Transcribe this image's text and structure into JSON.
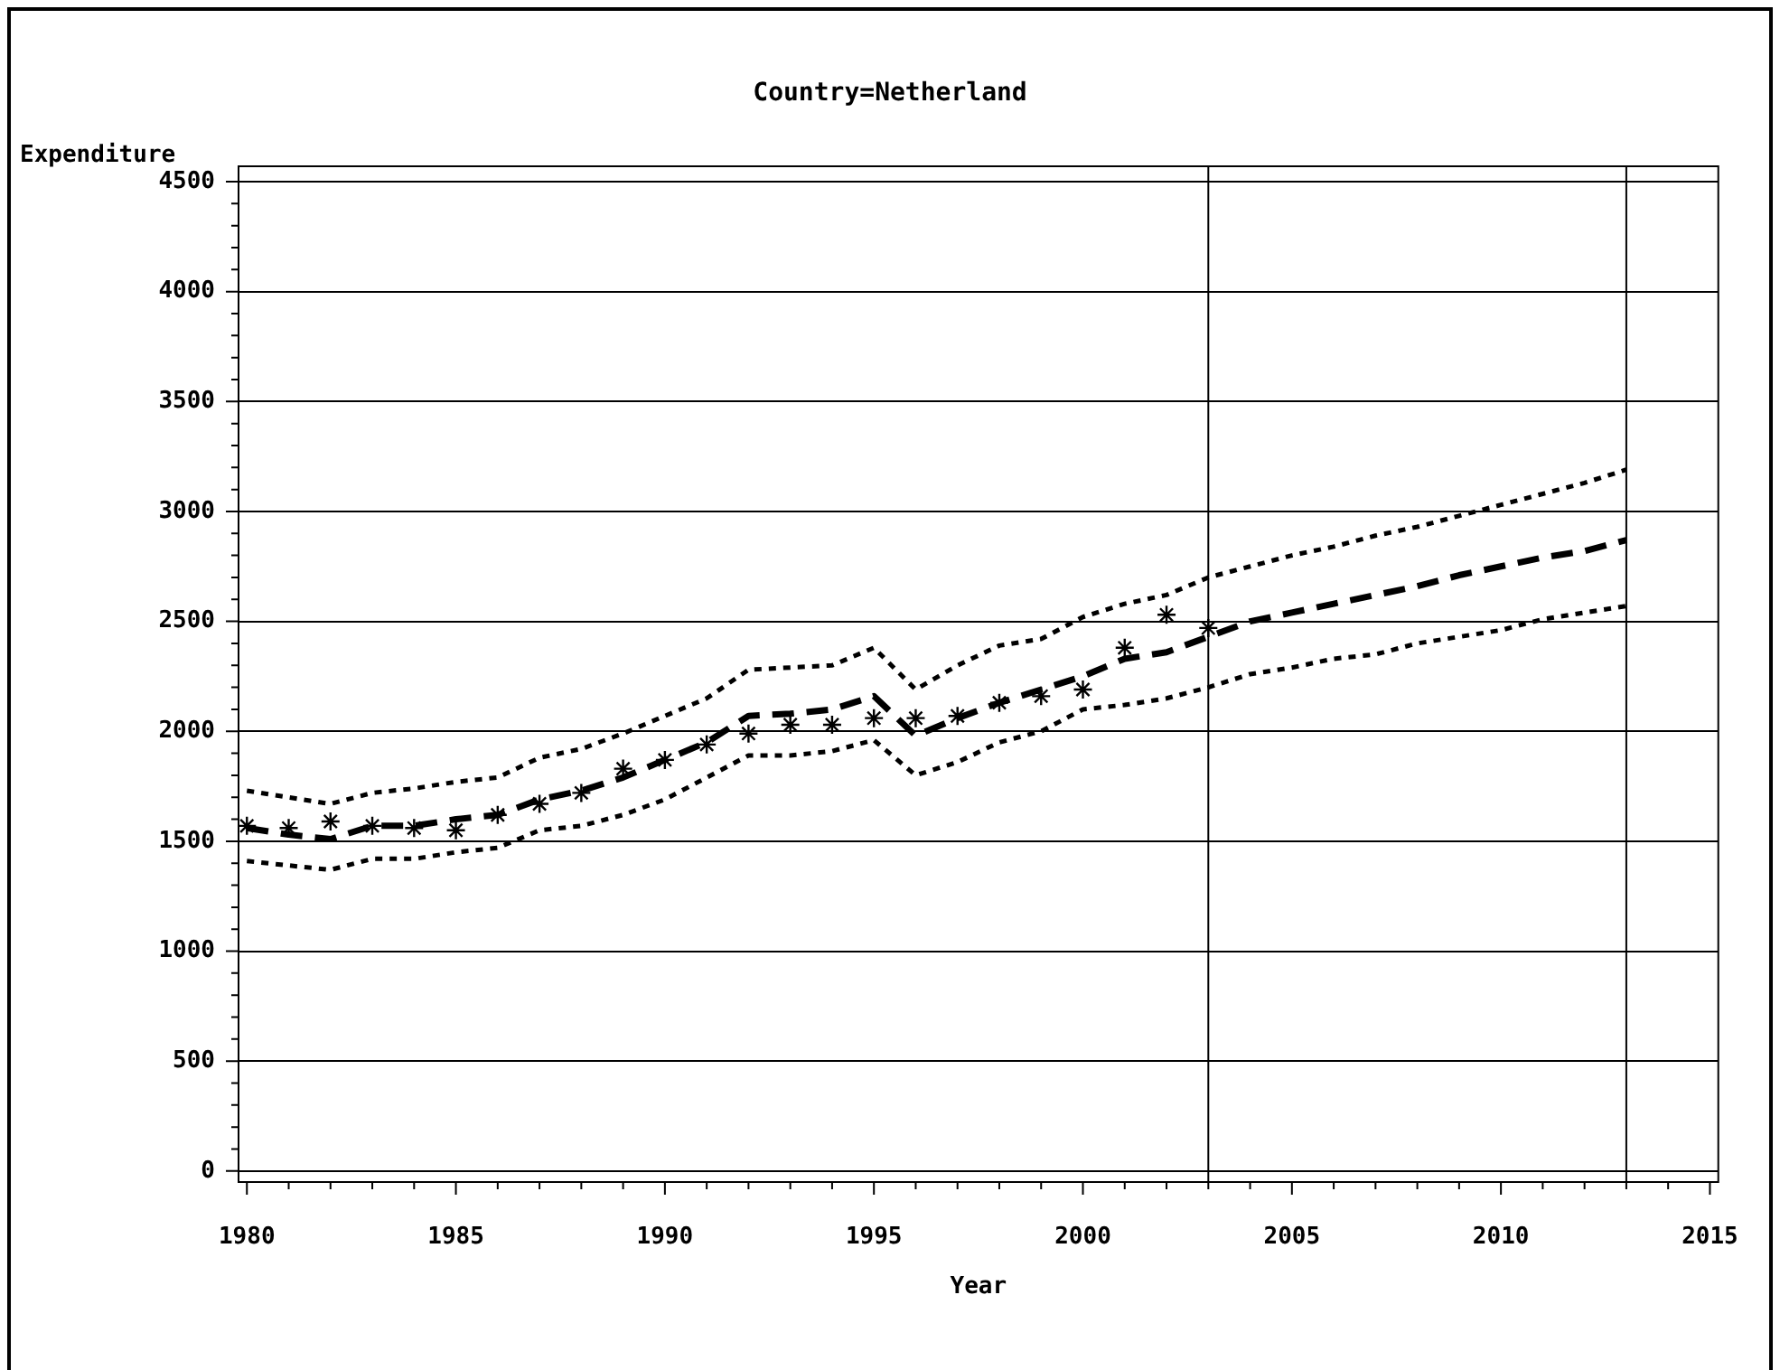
{
  "chart_data": {
    "type": "line",
    "title": "Country=Netherland",
    "xlabel": "Year",
    "ylabel": "Expenditure",
    "x": [
      1980,
      1981,
      1982,
      1983,
      1984,
      1985,
      1986,
      1987,
      1988,
      1989,
      1990,
      1991,
      1992,
      1993,
      1994,
      1995,
      1996,
      1997,
      1998,
      1999,
      2000,
      2001,
      2002,
      2003,
      2004,
      2005,
      2006,
      2007,
      2008,
      2009,
      2010,
      2011,
      2012,
      2013
    ],
    "series": [
      {
        "type": "scatter",
        "color": "#000000",
        "marker": "cross",
        "x": [
          1980,
          1981,
          1982,
          1983,
          1984,
          1985,
          1986,
          1987,
          1988,
          1989,
          1990,
          1991,
          1992,
          1993,
          1994,
          1995,
          1996,
          1997,
          1998,
          1999,
          2000,
          2001,
          2002,
          2003
        ],
        "values": [
          1570,
          1560,
          1590,
          1570,
          1560,
          1550,
          1620,
          1670,
          1720,
          1830,
          1870,
          1940,
          1990,
          2030,
          2030,
          2060,
          2060,
          2070,
          2130,
          2160,
          2190,
          2380,
          2530,
          2470
        ]
      },
      {
        "type": "line",
        "color": "#000000",
        "line_style": "dashed",
        "marker": "none",
        "values": [
          1560,
          1530,
          1510,
          1570,
          1570,
          1600,
          1620,
          1690,
          1730,
          1790,
          1870,
          1950,
          2070,
          2080,
          2100,
          2160,
          1980,
          2060,
          2130,
          2190,
          2250,
          2330,
          2360,
          2430,
          2500,
          2540,
          2580,
          2620,
          2660,
          2710,
          2750,
          2790,
          2820,
          2870
        ]
      },
      {
        "type": "line",
        "color": "#000000",
        "line_style": "dotted",
        "marker": "none",
        "values": [
          1730,
          1700,
          1670,
          1720,
          1740,
          1770,
          1790,
          1880,
          1920,
          1990,
          2070,
          2150,
          2280,
          2290,
          2300,
          2380,
          2190,
          2300,
          2390,
          2420,
          2520,
          2580,
          2620,
          2700,
          2750,
          2800,
          2840,
          2890,
          2930,
          2980,
          3030,
          3080,
          3130,
          3190
        ]
      },
      {
        "type": "line",
        "color": "#000000",
        "line_style": "dotted",
        "marker": "none",
        "values": [
          1410,
          1390,
          1370,
          1420,
          1420,
          1450,
          1470,
          1550,
          1570,
          1620,
          1690,
          1790,
          1890,
          1890,
          1910,
          1960,
          1800,
          1860,
          1950,
          2000,
          2100,
          2120,
          2150,
          2200,
          2260,
          2290,
          2330,
          2350,
          2400,
          2430,
          2460,
          2510,
          2540,
          2570
        ]
      }
    ],
    "xlim": [
      1979.8,
      2015.2
    ],
    "xticks": [
      1980,
      {
        "value": 1981,
        "label": null
      },
      {
        "value": 1982,
        "label": null
      },
      {
        "value": 1983,
        "label": null
      },
      {
        "value": 1984,
        "label": null
      },
      1985,
      {
        "value": 1986,
        "label": null
      },
      {
        "value": 1987,
        "label": null
      },
      {
        "value": 1988,
        "label": null
      },
      {
        "value": 1989,
        "label": null
      },
      1990,
      {
        "value": 1991,
        "label": null
      },
      {
        "value": 1992,
        "label": null
      },
      {
        "value": 1993,
        "label": null
      },
      {
        "value": 1994,
        "label": null
      },
      1995,
      {
        "value": 1996,
        "label": null
      },
      {
        "value": 1997,
        "label": null
      },
      {
        "value": 1998,
        "label": null
      },
      {
        "value": 1999,
        "label": null
      },
      2000,
      {
        "value": 2001,
        "label": null
      },
      {
        "value": 2002,
        "label": null
      },
      {
        "value": 2003,
        "label": null
      },
      {
        "value": 2004,
        "label": null
      },
      2005,
      {
        "value": 2006,
        "label": null
      },
      {
        "value": 2007,
        "label": null
      },
      {
        "value": 2008,
        "label": null
      },
      {
        "value": 2009,
        "label": null
      },
      2010,
      {
        "value": 2011,
        "label": null
      },
      {
        "value": 2012,
        "label": null
      },
      {
        "value": 2013,
        "label": null
      },
      {
        "value": 2014,
        "label": null
      },
      2015
    ],
    "ylim": [
      -50,
      4570
    ],
    "yticks": [
      0,
      {
        "value": 100,
        "label": null
      },
      {
        "value": 200,
        "label": null
      },
      {
        "value": 300,
        "label": null
      },
      {
        "value": 400,
        "label": null
      },
      500,
      {
        "value": 600,
        "label": null
      },
      {
        "value": 700,
        "label": null
      },
      {
        "value": 800,
        "label": null
      },
      {
        "value": 900,
        "label": null
      },
      1000,
      {
        "value": 1100,
        "label": null
      },
      {
        "value": 1200,
        "label": null
      },
      {
        "value": 1300,
        "label": null
      },
      {
        "value": 1400,
        "label": null
      },
      1500,
      {
        "value": 1600,
        "label": null
      },
      {
        "value": 1700,
        "label": null
      },
      {
        "value": 1800,
        "label": null
      },
      {
        "value": 1900,
        "label": null
      },
      2000,
      {
        "value": 2100,
        "label": null
      },
      {
        "value": 2200,
        "label": null
      },
      {
        "value": 2300,
        "label": null
      },
      {
        "value": 2400,
        "label": null
      },
      2500,
      {
        "value": 2600,
        "label": null
      },
      {
        "value": 2700,
        "label": null
      },
      {
        "value": 2800,
        "label": null
      },
      {
        "value": 2900,
        "label": null
      },
      3000,
      {
        "value": 3100,
        "label": null
      },
      {
        "value": 3200,
        "label": null
      },
      {
        "value": 3300,
        "label": null
      },
      {
        "value": 3400,
        "label": null
      },
      3500,
      {
        "value": 3600,
        "label": null
      },
      {
        "value": 3700,
        "label": null
      },
      {
        "value": 3800,
        "label": null
      },
      {
        "value": 3900,
        "label": null
      },
      4000,
      {
        "value": 4100,
        "label": null
      },
      {
        "value": 4200,
        "label": null
      },
      {
        "value": 4300,
        "label": null
      },
      {
        "value": 4400,
        "label": null
      },
      4500
    ],
    "grid": "y",
    "ref_lines": [
      {
        "axis": "x",
        "value": 2003,
        "color": "#000000"
      },
      {
        "axis": "x",
        "value": 2013,
        "color": "#000000"
      }
    ]
  }
}
